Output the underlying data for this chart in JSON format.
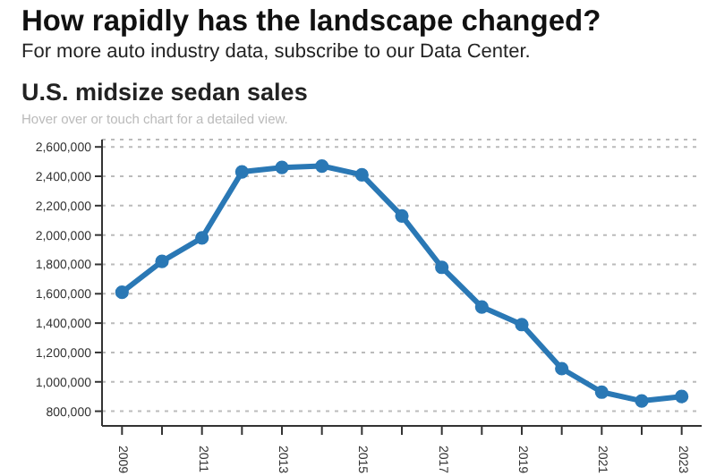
{
  "chart_data": {
    "type": "line",
    "title": "How rapidly has the landscape changed?",
    "subtitle": "For more auto industry data, subscribe to our Data Center.",
    "annotations": [
      "U.S. midsize sedan sales",
      "Hover over or touch chart for a detailed view."
    ],
    "x": [
      2009,
      2010,
      2011,
      2012,
      2013,
      2014,
      2015,
      2016,
      2017,
      2018,
      2019,
      2020,
      2021,
      2022,
      2023
    ],
    "series": [
      {
        "color": "#2a78b5",
        "values": [
          1610000,
          1820000,
          1980000,
          2430000,
          2460000,
          2470000,
          2410000,
          2130000,
          1780000,
          1510000,
          1390000,
          1090000,
          930000,
          870000,
          900000
        ]
      }
    ],
    "xlim": [
      2008.5,
      2023.5
    ],
    "xticks": [
      {
        "value": 2009,
        "label": "2009"
      },
      {
        "value": 2010,
        "label": null
      },
      {
        "value": 2011,
        "label": "2011"
      },
      {
        "value": 2012,
        "label": null
      },
      {
        "value": 2013,
        "label": "2013"
      },
      {
        "value": 2014,
        "label": null
      },
      {
        "value": 2015,
        "label": "2015"
      },
      {
        "value": 2016,
        "label": null
      },
      {
        "value": 2017,
        "label": "2017"
      },
      {
        "value": 2018,
        "label": null
      },
      {
        "value": 2019,
        "label": "2019"
      },
      {
        "value": 2020,
        "label": null
      },
      {
        "value": 2021,
        "label": "2021"
      },
      {
        "value": 2022,
        "label": null
      },
      {
        "value": 2023,
        "label": "2023"
      }
    ],
    "ylim": [
      700000,
      2650000
    ],
    "yticks": [
      {
        "value": 800000,
        "label": "800,000"
      },
      {
        "value": 1000000,
        "label": "1,000,000"
      },
      {
        "value": 1200000,
        "label": "1,200,000"
      },
      {
        "value": 1400000,
        "label": "1,400,000"
      },
      {
        "value": 1600000,
        "label": "1,600,000"
      },
      {
        "value": 1800000,
        "label": "1,800,000"
      },
      {
        "value": 2000000,
        "label": "2,000,000"
      },
      {
        "value": 2200000,
        "label": "2,200,000"
      },
      {
        "value": 2400000,
        "label": "2,400,000"
      },
      {
        "value": 2600000,
        "label": "2,600,000"
      }
    ],
    "grid": "y",
    "marker": "circle",
    "line_style": "solid",
    "legend": false
  }
}
